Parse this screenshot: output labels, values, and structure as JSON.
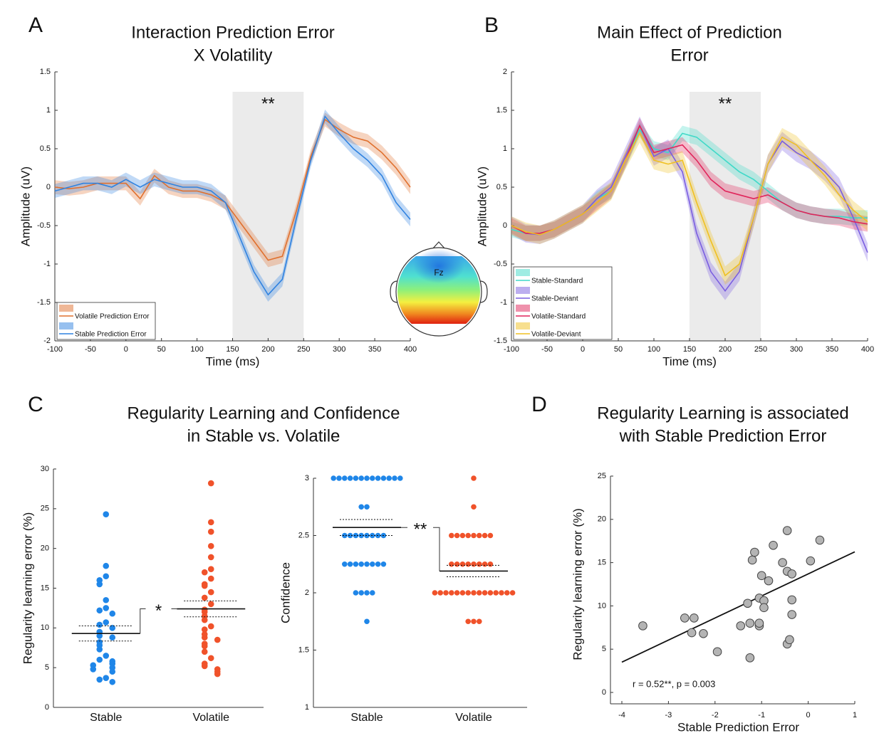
{
  "chart_data": [
    {
      "type": "line",
      "panel_label": "A",
      "title": [
        "Interaction Prediction Error",
        "X Volatility"
      ],
      "xlabel": "Time (ms)",
      "ylabel": "Amplitude (uV)",
      "x": [
        -100,
        -80,
        -60,
        -40,
        -20,
        0,
        20,
        40,
        60,
        80,
        100,
        120,
        140,
        160,
        180,
        200,
        220,
        240,
        260,
        280,
        300,
        320,
        340,
        360,
        380,
        400
      ],
      "xlim": [
        -100,
        400
      ],
      "xticks": [
        -100,
        -50,
        0,
        50,
        100,
        150,
        200,
        250,
        300,
        350,
        400
      ],
      "ylim": [
        -2,
        1.5
      ],
      "yticks": [
        -2,
        -1.5,
        -1,
        -0.5,
        0,
        0.5,
        1,
        1.5
      ],
      "highlight": {
        "range": [
          150,
          250
        ],
        "label": "**"
      },
      "legend": "lower left",
      "inset_label": "Fz",
      "series": [
        {
          "name": "Volatile Prediction Error",
          "color": "#e0702e",
          "error": 0.09,
          "values": [
            0,
            -0.02,
            0,
            0.05,
            0.05,
            0.05,
            -0.15,
            0.15,
            0,
            -0.05,
            -0.05,
            -0.1,
            -0.2,
            -0.45,
            -0.7,
            -0.95,
            -0.9,
            -0.3,
            0.4,
            0.88,
            0.75,
            0.65,
            0.6,
            0.45,
            0.25,
            0
          ]
        },
        {
          "name": "Stable Prediction Error",
          "color": "#2f82e0",
          "error": 0.09,
          "values": [
            -0.05,
            0,
            0.05,
            0.05,
            0,
            0.1,
            0,
            0.1,
            0.05,
            0,
            0,
            -0.05,
            -0.2,
            -0.65,
            -1.1,
            -1.4,
            -1.2,
            -0.4,
            0.35,
            0.92,
            0.7,
            0.5,
            0.35,
            0.15,
            -0.2,
            -0.42
          ]
        }
      ]
    },
    {
      "type": "line",
      "panel_label": "B",
      "title": [
        "Main Effect of Prediction",
        "Error"
      ],
      "xlabel": "Time (ms)",
      "ylabel": "Amplitude (uV)",
      "x": [
        -100,
        -80,
        -60,
        -40,
        -20,
        0,
        20,
        40,
        60,
        80,
        100,
        120,
        140,
        160,
        180,
        200,
        220,
        240,
        260,
        280,
        300,
        320,
        340,
        360,
        380,
        400
      ],
      "xlim": [
        -100,
        400
      ],
      "xticks": [
        -100,
        -50,
        0,
        50,
        100,
        150,
        200,
        250,
        300,
        350,
        400
      ],
      "ylim": [
        -1.5,
        2
      ],
      "yticks": [
        -1.5,
        -1,
        -0.5,
        0,
        0.5,
        1,
        1.5,
        2
      ],
      "highlight": {
        "range": [
          150,
          250
        ],
        "label": "**"
      },
      "legend": "lower left",
      "series": [
        {
          "name": "Stable-Standard",
          "color": "#3fd9c8",
          "error": 0.1,
          "values": [
            -0.05,
            -0.1,
            -0.1,
            -0.05,
            0.05,
            0.15,
            0.35,
            0.45,
            0.85,
            1.25,
            1,
            0.95,
            1.2,
            1.15,
            1,
            0.85,
            0.7,
            0.6,
            0.45,
            0.3,
            0.2,
            0.15,
            0.12,
            0.12,
            0.1,
            0.1
          ]
        },
        {
          "name": "Stable-Deviant",
          "color": "#7a5ee0",
          "error": 0.12,
          "values": [
            0,
            -0.1,
            -0.12,
            -0.05,
            0.05,
            0.15,
            0.35,
            0.5,
            0.9,
            1.3,
            0.9,
            1,
            0.7,
            -0.1,
            -0.6,
            -0.85,
            -0.6,
            0.1,
            0.8,
            1.1,
            0.95,
            0.85,
            0.7,
            0.5,
            0.1,
            -0.35
          ]
        },
        {
          "name": "Volatile-Standard",
          "color": "#e0245a",
          "error": 0.1,
          "values": [
            0,
            -0.1,
            -0.1,
            -0.05,
            0.05,
            0.15,
            0.3,
            0.45,
            0.85,
            1.3,
            0.95,
            1,
            1.05,
            0.85,
            0.6,
            0.45,
            0.4,
            0.35,
            0.4,
            0.3,
            0.2,
            0.15,
            0.12,
            0.1,
            0.05,
            0.02
          ]
        },
        {
          "name": "Volatile-Deviant",
          "color": "#f0c020",
          "error": 0.12,
          "values": [
            0,
            -0.08,
            -0.12,
            -0.05,
            0.05,
            0.15,
            0.3,
            0.45,
            0.85,
            1.2,
            0.85,
            0.8,
            0.85,
            0.3,
            -0.2,
            -0.65,
            -0.5,
            0.1,
            0.8,
            1.15,
            1.05,
            0.85,
            0.65,
            0.4,
            0.2,
            0.05
          ]
        }
      ]
    },
    {
      "type": "strip",
      "panel_label": "C",
      "title": [
        "Regularity Learning and Confidence",
        "in Stable vs. Volatile"
      ],
      "ylabel": "Regularity learning error (%)",
      "categories": [
        "Stable",
        "Volatile"
      ],
      "ylim": [
        0,
        30
      ],
      "yticks": [
        0,
        5,
        10,
        15,
        20,
        25,
        30
      ],
      "significance": "*",
      "groups": [
        {
          "color": "#1f86e8",
          "mean": 9.3,
          "se": 0.95,
          "values": [
            24.3,
            17.8,
            16.5,
            16,
            15.5,
            13.5,
            12.5,
            12.2,
            11.8,
            10.7,
            10.4,
            10,
            9.5,
            9,
            8.8,
            8.2,
            7.8,
            7.3,
            6.5,
            6,
            5.8,
            5.5,
            5.3,
            5,
            4.8,
            4.5,
            3.7,
            3.5,
            3.2
          ]
        },
        {
          "color": "#f0522a",
          "mean": 12.4,
          "se": 1,
          "values": [
            28.2,
            23.3,
            22.1,
            20.3,
            18.9,
            17.4,
            17,
            16.2,
            15.5,
            15.3,
            14.5,
            13.8,
            13,
            12.3,
            12,
            11.5,
            11,
            10.2,
            9.8,
            9.2,
            8.8,
            8.5,
            8,
            7.7,
            7,
            6.2,
            5.5,
            5.2,
            4.8,
            4.5,
            4.2
          ]
        }
      ]
    },
    {
      "type": "strip",
      "ylabel": "Confidence",
      "categories": [
        "Stable",
        "Volatile"
      ],
      "ylim": [
        1,
        3
      ],
      "yticks": [
        1,
        1.5,
        2,
        2.5,
        3
      ],
      "significance": "**",
      "groups": [
        {
          "color": "#1f86e8",
          "mean": 2.57,
          "se": 0.07,
          "values": [
            3,
            3,
            3,
            3,
            3,
            3,
            3,
            3,
            3,
            3,
            3,
            3,
            3,
            2.75,
            2.75,
            2.5,
            2.5,
            2.5,
            2.5,
            2.5,
            2.5,
            2.5,
            2.5,
            2.25,
            2.25,
            2.25,
            2.25,
            2.25,
            2.25,
            2.25,
            2.25,
            2,
            2,
            2,
            2,
            1.75
          ]
        },
        {
          "color": "#f0522a",
          "mean": 2.19,
          "se": 0.05,
          "values": [
            3,
            2.75,
            2.5,
            2.5,
            2.5,
            2.5,
            2.5,
            2.5,
            2.5,
            2.5,
            2.25,
            2.25,
            2.25,
            2.25,
            2.25,
            2.25,
            2.25,
            2.25,
            2,
            2,
            2,
            2,
            2,
            2,
            2,
            2,
            2,
            2,
            2,
            2,
            2,
            2,
            2,
            1.75,
            1.75,
            1.75
          ]
        }
      ]
    },
    {
      "type": "scatter",
      "panel_label": "D",
      "title": [
        "Regularity Learning is associated",
        "with Stable Prediction Error"
      ],
      "xlabel": "Stable Prediction Error",
      "ylabel": "Regularity learning error (%)",
      "xlim": [
        -4,
        1
      ],
      "xticks": [
        -4,
        -3,
        -2,
        -1,
        0,
        1
      ],
      "ylim": [
        0,
        25
      ],
      "yticks": [
        0,
        5,
        10,
        15,
        20,
        25
      ],
      "annotation": "r = 0.52**, p = 0.003",
      "color": "#b4b4b4",
      "fit": {
        "intercept": 13.7,
        "slope": 2.55
      },
      "x": [
        -3.55,
        -2.65,
        -2.45,
        -2.5,
        -2.25,
        -1.95,
        -1.45,
        -1.3,
        -1.25,
        -1.2,
        -1.25,
        -1.15,
        -1.05,
        -1.05,
        -1,
        -1.05,
        -0.95,
        -0.95,
        -0.85,
        -0.75,
        -0.55,
        -0.45,
        -0.45,
        -0.35,
        -0.45,
        -0.4,
        -0.35,
        -0.35,
        0.05,
        0.25
      ],
      "y": [
        7.7,
        8.6,
        8.6,
        6.9,
        6.8,
        4.7,
        7.7,
        10.3,
        4,
        15.3,
        8,
        16.2,
        7.7,
        8,
        13.5,
        10.9,
        10.6,
        9.8,
        12.9,
        17,
        15,
        18.7,
        14,
        13.7,
        5.6,
        6.1,
        10.7,
        9,
        15.2,
        17.6
      ]
    }
  ]
}
